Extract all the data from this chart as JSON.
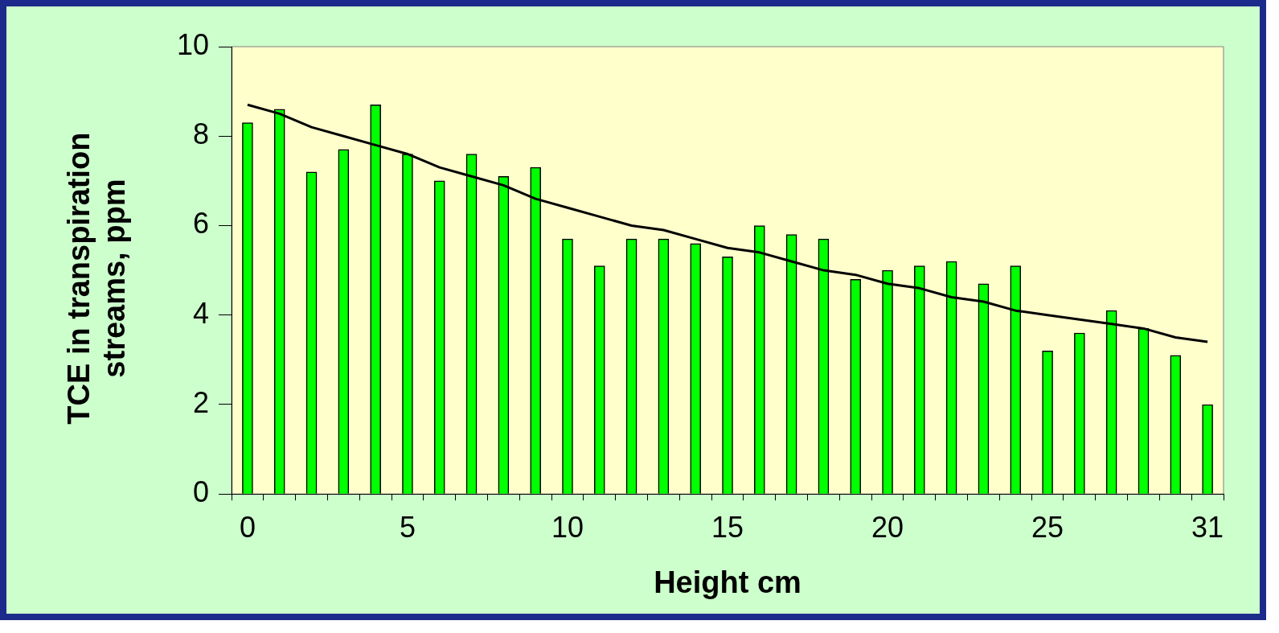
{
  "chart_data": {
    "type": "bar",
    "xlabel": "Height cm",
    "ylabel": "TCE in transpiration streams, ppm",
    "categories": [
      "0",
      null,
      null,
      null,
      null,
      "5",
      null,
      null,
      null,
      null,
      "10",
      null,
      null,
      null,
      null,
      "15",
      null,
      null,
      null,
      null,
      "20",
      null,
      null,
      null,
      null,
      "25",
      null,
      null,
      null,
      null,
      "31"
    ],
    "series": [
      {
        "color": "#00ff00",
        "values": [
          8.3,
          8.6,
          7.2,
          7.7,
          8.7,
          7.6,
          7.0,
          7.6,
          7.1,
          7.3,
          5.7,
          5.1,
          5.7,
          5.7,
          5.6,
          5.3,
          6.0,
          5.8,
          5.7,
          4.8,
          5.0,
          5.1,
          5.2,
          4.7,
          5.1,
          3.2,
          3.6,
          4.1,
          3.7,
          3.1,
          2.0
        ]
      },
      {
        "type": "line",
        "color": "#000000",
        "values": [
          8.7,
          8.5,
          8.2,
          8.0,
          7.8,
          7.6,
          7.3,
          7.1,
          6.9,
          6.6,
          6.4,
          6.2,
          6.0,
          5.9,
          5.7,
          5.5,
          5.4,
          5.2,
          5.0,
          4.9,
          4.7,
          4.6,
          4.4,
          4.3,
          4.1,
          4.0,
          3.9,
          3.8,
          3.7,
          3.5,
          3.4
        ]
      }
    ],
    "ylim": [
      0,
      10
    ],
    "yticks": [
      0,
      2,
      4,
      6,
      8,
      10
    ],
    "legend": false
  }
}
